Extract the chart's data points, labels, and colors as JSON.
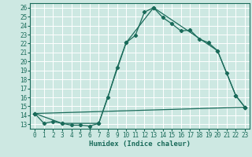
{
  "title": "",
  "xlabel": "Humidex (Indice chaleur)",
  "bg_color": "#cde8e2",
  "line_color": "#1a6b5a",
  "grid_color": "#ffffff",
  "xlim": [
    -0.5,
    23.5
  ],
  "ylim": [
    12.5,
    26.5
  ],
  "xticks": [
    0,
    1,
    2,
    3,
    4,
    5,
    6,
    7,
    8,
    9,
    10,
    11,
    12,
    13,
    14,
    15,
    16,
    17,
    18,
    19,
    20,
    21,
    22,
    23
  ],
  "yticks": [
    13,
    14,
    15,
    16,
    17,
    18,
    19,
    20,
    21,
    22,
    23,
    24,
    25,
    26
  ],
  "series1_x": [
    0,
    1,
    2,
    3,
    4,
    5,
    6,
    7,
    8,
    9,
    10,
    11,
    12,
    13,
    14,
    15,
    16,
    17,
    18,
    19,
    20,
    21,
    22,
    23
  ],
  "series1_y": [
    14.2,
    13.1,
    13.3,
    13.1,
    12.9,
    12.9,
    12.8,
    13.1,
    16.0,
    19.3,
    22.1,
    22.9,
    25.5,
    26.0,
    24.9,
    24.2,
    23.4,
    23.5,
    22.5,
    22.1,
    21.2,
    18.7,
    16.2,
    14.9
  ],
  "series2_x": [
    0,
    3,
    7,
    10,
    13,
    20,
    22,
    23
  ],
  "series2_y": [
    14.2,
    13.1,
    13.1,
    22.1,
    26.0,
    21.2,
    16.2,
    14.9
  ],
  "series3_x": [
    0,
    23
  ],
  "series3_y": [
    14.2,
    14.9
  ],
  "font_family": "monospace",
  "tick_fontsize": 5.5,
  "xlabel_fontsize": 6.5
}
